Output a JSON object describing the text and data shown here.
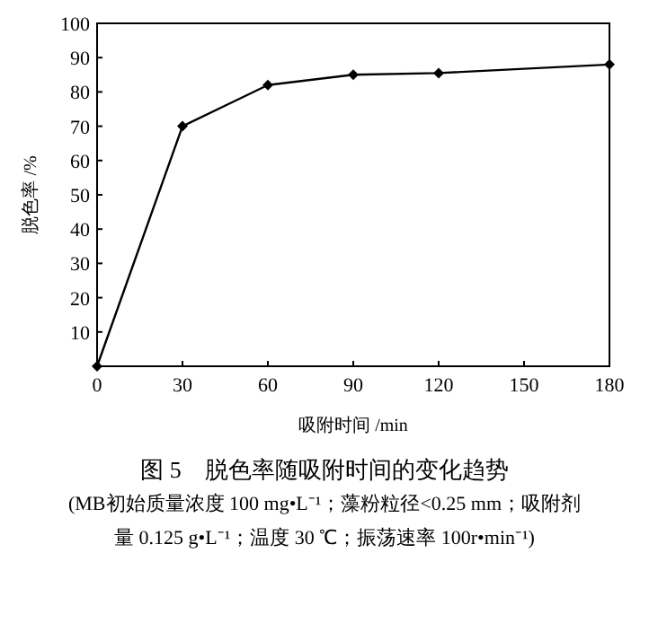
{
  "chart_data": {
    "type": "line",
    "title": "图 5　脱色率随吸附时间的变化趋势",
    "subtitle": "(MB初始质量浓度 100 mg•L⁻¹；藻粉粒径<0.25 mm；吸附剂量 0.125 g•L⁻¹；温度 30 ℃；振荡速率 100r•min⁻¹)",
    "xlabel": "吸附时间 /min",
    "ylabel": "脱色率 /%",
    "x": [
      0,
      30,
      60,
      90,
      120,
      180
    ],
    "series": [
      {
        "color": "#000000",
        "values": [
          0,
          70,
          82,
          85,
          85.5,
          88
        ]
      }
    ],
    "xlim": [
      0,
      180
    ],
    "xticks": [
      0,
      30,
      60,
      90,
      120,
      150,
      180
    ],
    "ylim": [
      0,
      100
    ],
    "yticks": [
      {
        "value": 0,
        "label": null
      },
      10,
      20,
      30,
      40,
      50,
      60,
      70,
      80,
      90,
      100
    ],
    "marker": "diamond",
    "line_style": "solid",
    "grid": false
  }
}
